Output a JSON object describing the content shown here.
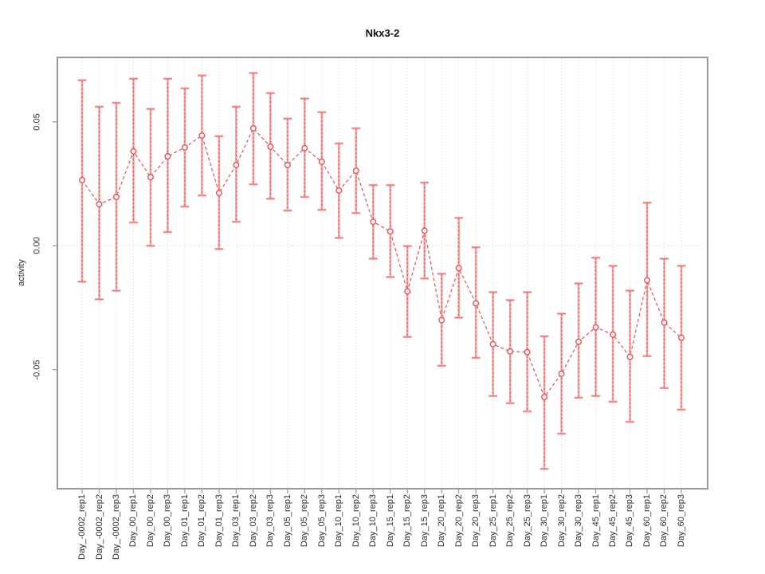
{
  "title": "Nkx3-2",
  "colors": {
    "series_red": "#ec5252",
    "cap_red": "#f07474",
    "whisker_pink": "#f9a6a6",
    "grid": "#d8d8d8",
    "axis": "#979797",
    "text": "#2b2b2b"
  },
  "chart_data": {
    "type": "scatter",
    "title": "Nkx3-2",
    "xlabel": "",
    "ylabel": "activity",
    "ylim": [
      -0.098,
      0.076
    ],
    "yticks": [
      -0.05,
      0,
      0.05
    ],
    "ytick_labels": [
      "-0.05",
      "0.00",
      "0.05"
    ],
    "grid": "vertical dotted gridlines at each category; dotted horizontal line at y=0",
    "legend_position": "none",
    "marker": "open-circle",
    "line_style": "dashed",
    "error_bar_style": "pink whisker with red dashed core and caps",
    "categories": [
      "Day_-0002_rep1",
      "Day_-0002_rep2",
      "Day_-0002_rep3",
      "Day_00_rep1",
      "Day_00_rep2",
      "Day_00_rep3",
      "Day_01_rep1",
      "Day_01_rep2",
      "Day_01_rep3",
      "Day_03_rep1",
      "Day_03_rep2",
      "Day_03_rep3",
      "Day_05_rep1",
      "Day_05_rep2",
      "Day_05_rep3",
      "Day_10_rep1",
      "Day_10_rep2",
      "Day_10_rep3",
      "Day_15_rep1",
      "Day_15_rep2",
      "Day_15_rep3",
      "Day_20_rep1",
      "Day_20_rep2",
      "Day_20_rep3",
      "Day_25_rep1",
      "Day_25_rep2",
      "Day_25_rep3",
      "Day_30_rep1",
      "Day_30_rep2",
      "Day_30_rep3",
      "Day_45_rep1",
      "Day_45_rep2",
      "Day_45_rep3",
      "Day_60_rep1",
      "Day_60_rep2",
      "Day_60_rep3"
    ],
    "series": [
      {
        "name": "activity",
        "values": [
          0.0265,
          0.0168,
          0.0197,
          0.0381,
          0.0277,
          0.0361,
          0.0397,
          0.0445,
          0.0213,
          0.0326,
          0.0474,
          0.04,
          0.0326,
          0.0394,
          0.0339,
          0.0223,
          0.0303,
          0.0097,
          0.0058,
          -0.0184,
          0.0061,
          -0.03,
          -0.009,
          -0.0232,
          -0.0397,
          -0.0426,
          -0.0429,
          -0.061,
          -0.0516,
          -0.0387,
          -0.0329,
          -0.0358,
          -0.0448,
          -0.0139,
          -0.031,
          -0.0371
        ],
        "ci_high": [
          0.0668,
          0.0561,
          0.0577,
          0.0674,
          0.0552,
          0.0674,
          0.0635,
          0.0687,
          0.0442,
          0.0561,
          0.0697,
          0.0616,
          0.0513,
          0.0594,
          0.0539,
          0.0413,
          0.0474,
          0.0245,
          0.0245,
          -0.0001,
          0.0255,
          -0.0113,
          0.0113,
          -0.0006,
          -0.0187,
          -0.0219,
          -0.0187,
          -0.0365,
          -0.0274,
          -0.0152,
          -0.0048,
          -0.0081,
          -0.0181,
          0.0174,
          -0.0052,
          -0.0081
        ],
        "ci_low": [
          -0.0145,
          -0.0216,
          -0.0181,
          0.0094,
          0.0,
          0.0055,
          0.0158,
          0.0203,
          -0.0013,
          0.0097,
          0.0248,
          0.019,
          0.0142,
          0.0197,
          0.0145,
          0.0032,
          0.0132,
          -0.0052,
          -0.0126,
          -0.0368,
          -0.0132,
          -0.0484,
          -0.029,
          -0.0452,
          -0.0606,
          -0.0635,
          -0.0668,
          -0.09,
          -0.0758,
          -0.0613,
          -0.0606,
          -0.0629,
          -0.071,
          -0.0445,
          -0.0574,
          -0.0661
        ]
      }
    ]
  }
}
